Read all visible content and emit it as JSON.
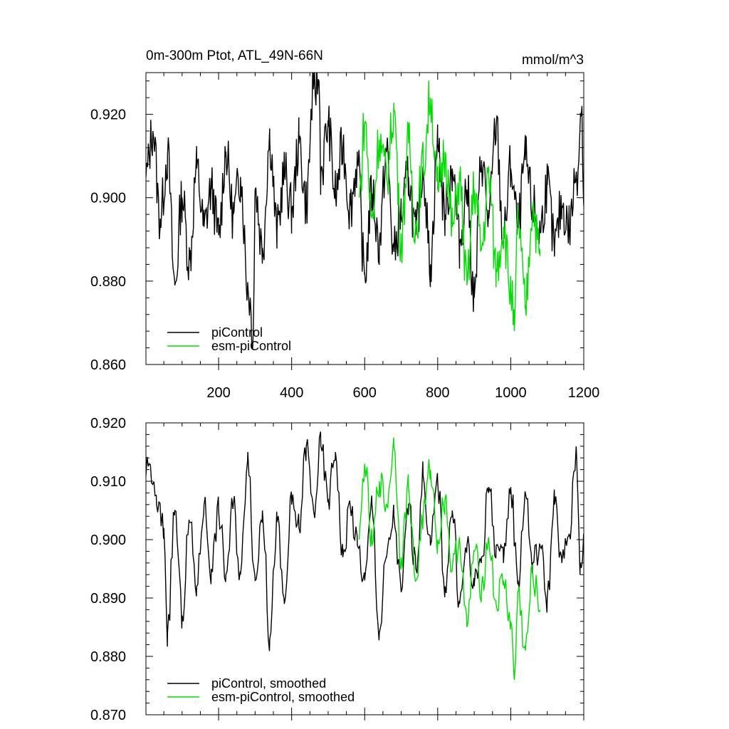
{
  "chart_data": [
    {
      "type": "line",
      "title": "0m-300m Ptot, ATL_49N-66N",
      "units": "mmol/m^3",
      "xlim": [
        1,
        1200
      ],
      "ylim": [
        0.86,
        0.93
      ],
      "x_ticks": [
        200,
        400,
        600,
        800,
        1000,
        1200
      ],
      "x_tick_labels": [
        "200",
        "400",
        "600",
        "800",
        "1000",
        "1200"
      ],
      "y_ticks": [
        0.86,
        0.88,
        0.9,
        0.92
      ],
      "y_tick_labels": [
        "0.860",
        "0.880",
        "0.900",
        "0.920"
      ],
      "legend_placement": "bottom-left",
      "series": [
        {
          "name": "piControl",
          "color": "#000000",
          "x": [
            1,
            20,
            40,
            60,
            80,
            100,
            120,
            140,
            160,
            180,
            200,
            220,
            240,
            260,
            280,
            295,
            300,
            320,
            340,
            360,
            380,
            400,
            420,
            440,
            460,
            475,
            480,
            500,
            520,
            540,
            560,
            580,
            600,
            620,
            640,
            660,
            680,
            700,
            720,
            740,
            760,
            780,
            800,
            820,
            840,
            860,
            880,
            900,
            920,
            940,
            960,
            980,
            1000,
            1020,
            1040,
            1060,
            1080,
            1100,
            1120,
            1140,
            1160,
            1180,
            1195,
            1200
          ],
          "values": [
            0.905,
            0.916,
            0.895,
            0.91,
            0.879,
            0.9,
            0.885,
            0.907,
            0.893,
            0.902,
            0.891,
            0.911,
            0.896,
            0.905,
            0.879,
            0.868,
            0.902,
            0.888,
            0.914,
            0.892,
            0.906,
            0.897,
            0.913,
            0.899,
            0.926,
            0.928,
            0.906,
            0.917,
            0.901,
            0.912,
            0.898,
            0.908,
            0.882,
            0.901,
            0.889,
            0.911,
            0.887,
            0.896,
            0.905,
            0.891,
            0.907,
            0.884,
            0.913,
            0.896,
            0.907,
            0.889,
            0.902,
            0.876,
            0.909,
            0.895,
            0.917,
            0.89,
            0.907,
            0.893,
            0.909,
            0.898,
            0.892,
            0.903,
            0.888,
            0.898,
            0.893,
            0.906,
            0.922,
            0.898
          ]
        },
        {
          "name": "esm-piControl",
          "color": "#00dd00",
          "x": [
            585,
            600,
            620,
            640,
            660,
            680,
            700,
            720,
            740,
            760,
            780,
            800,
            820,
            840,
            860,
            880,
            900,
            920,
            940,
            960,
            980,
            1000,
            1010,
            1020,
            1040,
            1060,
            1080
          ],
          "values": [
            0.9,
            0.918,
            0.895,
            0.914,
            0.905,
            0.921,
            0.89,
            0.913,
            0.893,
            0.908,
            0.924,
            0.902,
            0.911,
            0.893,
            0.904,
            0.879,
            0.902,
            0.888,
            0.905,
            0.883,
            0.893,
            0.878,
            0.868,
            0.895,
            0.874,
            0.898,
            0.886
          ]
        }
      ]
    },
    {
      "type": "line",
      "xlim": [
        1,
        1200
      ],
      "ylim": [
        0.87,
        0.92
      ],
      "x_ticks": [
        200,
        400,
        600,
        800,
        1000,
        1200
      ],
      "y_ticks": [
        0.87,
        0.88,
        0.89,
        0.9,
        0.91,
        0.92
      ],
      "y_tick_labels": [
        "0.870",
        "0.880",
        "0.890",
        "0.900",
        "0.910",
        "0.920"
      ],
      "legend_placement": "bottom-left",
      "series": [
        {
          "name": "piControl, smoothed",
          "color": "#000000",
          "x": [
            1,
            10,
            30,
            50,
            60,
            80,
            100,
            120,
            140,
            160,
            180,
            200,
            220,
            240,
            260,
            280,
            300,
            320,
            340,
            360,
            380,
            400,
            420,
            440,
            460,
            480,
            500,
            520,
            540,
            560,
            580,
            600,
            620,
            640,
            660,
            680,
            700,
            720,
            740,
            760,
            780,
            800,
            820,
            840,
            860,
            880,
            900,
            920,
            940,
            960,
            980,
            1000,
            1020,
            1040,
            1060,
            1080,
            1100,
            1120,
            1140,
            1160,
            1180,
            1190,
            1200
          ],
          "values": [
            0.911,
            0.913,
            0.906,
            0.902,
            0.884,
            0.905,
            0.887,
            0.903,
            0.892,
            0.906,
            0.895,
            0.905,
            0.894,
            0.906,
            0.894,
            0.915,
            0.893,
            0.905,
            0.883,
            0.903,
            0.889,
            0.906,
            0.902,
            0.916,
            0.905,
            0.916,
            0.907,
            0.915,
            0.897,
            0.906,
            0.899,
            0.893,
            0.906,
            0.884,
            0.897,
            0.904,
            0.891,
            0.906,
            0.895,
            0.911,
            0.899,
            0.91,
            0.892,
            0.905,
            0.889,
            0.899,
            0.892,
            0.897,
            0.909,
            0.899,
            0.896,
            0.909,
            0.893,
            0.908,
            0.896,
            0.899,
            0.89,
            0.906,
            0.896,
            0.901,
            0.915,
            0.896,
            0.9
          ]
        },
        {
          "name": "esm-piControl, smoothed",
          "color": "#00dd00",
          "x": [
            585,
            600,
            620,
            640,
            660,
            680,
            700,
            720,
            740,
            760,
            780,
            800,
            820,
            840,
            860,
            880,
            900,
            920,
            940,
            960,
            980,
            1000,
            1010,
            1020,
            1040,
            1060,
            1080
          ],
          "values": [
            0.9,
            0.913,
            0.899,
            0.91,
            0.906,
            0.916,
            0.897,
            0.909,
            0.893,
            0.904,
            0.912,
            0.9,
            0.907,
            0.895,
            0.9,
            0.885,
            0.898,
            0.892,
            0.9,
            0.889,
            0.893,
            0.886,
            0.876,
            0.891,
            0.881,
            0.894,
            0.888
          ]
        }
      ]
    }
  ]
}
